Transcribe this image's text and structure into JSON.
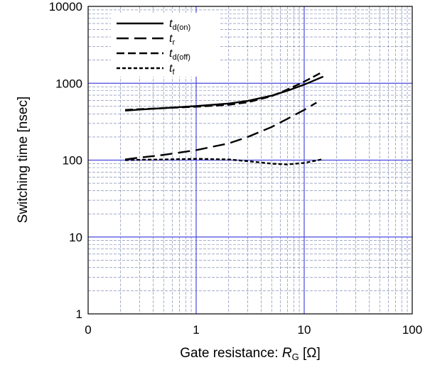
{
  "chart_data": {
    "type": "line",
    "x_scale": "log",
    "y_scale": "log",
    "xlim": [
      0.1,
      100
    ],
    "ylim": [
      1,
      10000
    ],
    "x_ticks": [
      "0",
      "1",
      "10",
      "100"
    ],
    "y_ticks": [
      "1",
      "10",
      "100",
      "1000",
      "10000"
    ],
    "xlabel": {
      "prefix": "Gate resistance: ",
      "var": "R",
      "sub": "G",
      "suffix": " [Ω]"
    },
    "ylabel": "Switching time  [nsec]",
    "grid": true,
    "legend_position": "top-left",
    "series": [
      {
        "name": {
          "var": "t",
          "sub": "d(on)"
        },
        "style": "solid",
        "x": [
          0.22,
          0.3,
          0.5,
          1,
          2,
          3,
          5,
          7,
          10,
          15
        ],
        "y": [
          440,
          455,
          475,
          505,
          545,
          590,
          690,
          800,
          960,
          1220
        ]
      },
      {
        "name": {
          "var": "t",
          "sub": "r"
        },
        "style": "long-dash",
        "x": [
          0.22,
          0.3,
          0.5,
          1,
          2,
          3,
          5,
          7,
          10,
          13
        ],
        "y": [
          102,
          108,
          117,
          135,
          165,
          200,
          270,
          345,
          450,
          560
        ]
      },
      {
        "name": {
          "var": "t",
          "sub": "d(off)"
        },
        "style": "dash",
        "x": [
          0.22,
          0.3,
          0.5,
          1,
          2,
          3,
          5,
          7,
          10,
          15
        ],
        "y": [
          450,
          460,
          475,
          495,
          525,
          565,
          680,
          830,
          1050,
          1420
        ]
      },
      {
        "name": {
          "var": "t",
          "sub": "f"
        },
        "style": "short-dash",
        "x": [
          0.22,
          0.3,
          0.5,
          1,
          2,
          3,
          5,
          7,
          10,
          15
        ],
        "y": [
          100,
          101,
          102,
          104,
          102,
          97,
          90,
          88,
          92,
          103
        ]
      }
    ],
    "colors": {
      "major_grid": "#4a4ae0",
      "minor_grid": "#6e7ba8",
      "series": "#000000"
    }
  }
}
